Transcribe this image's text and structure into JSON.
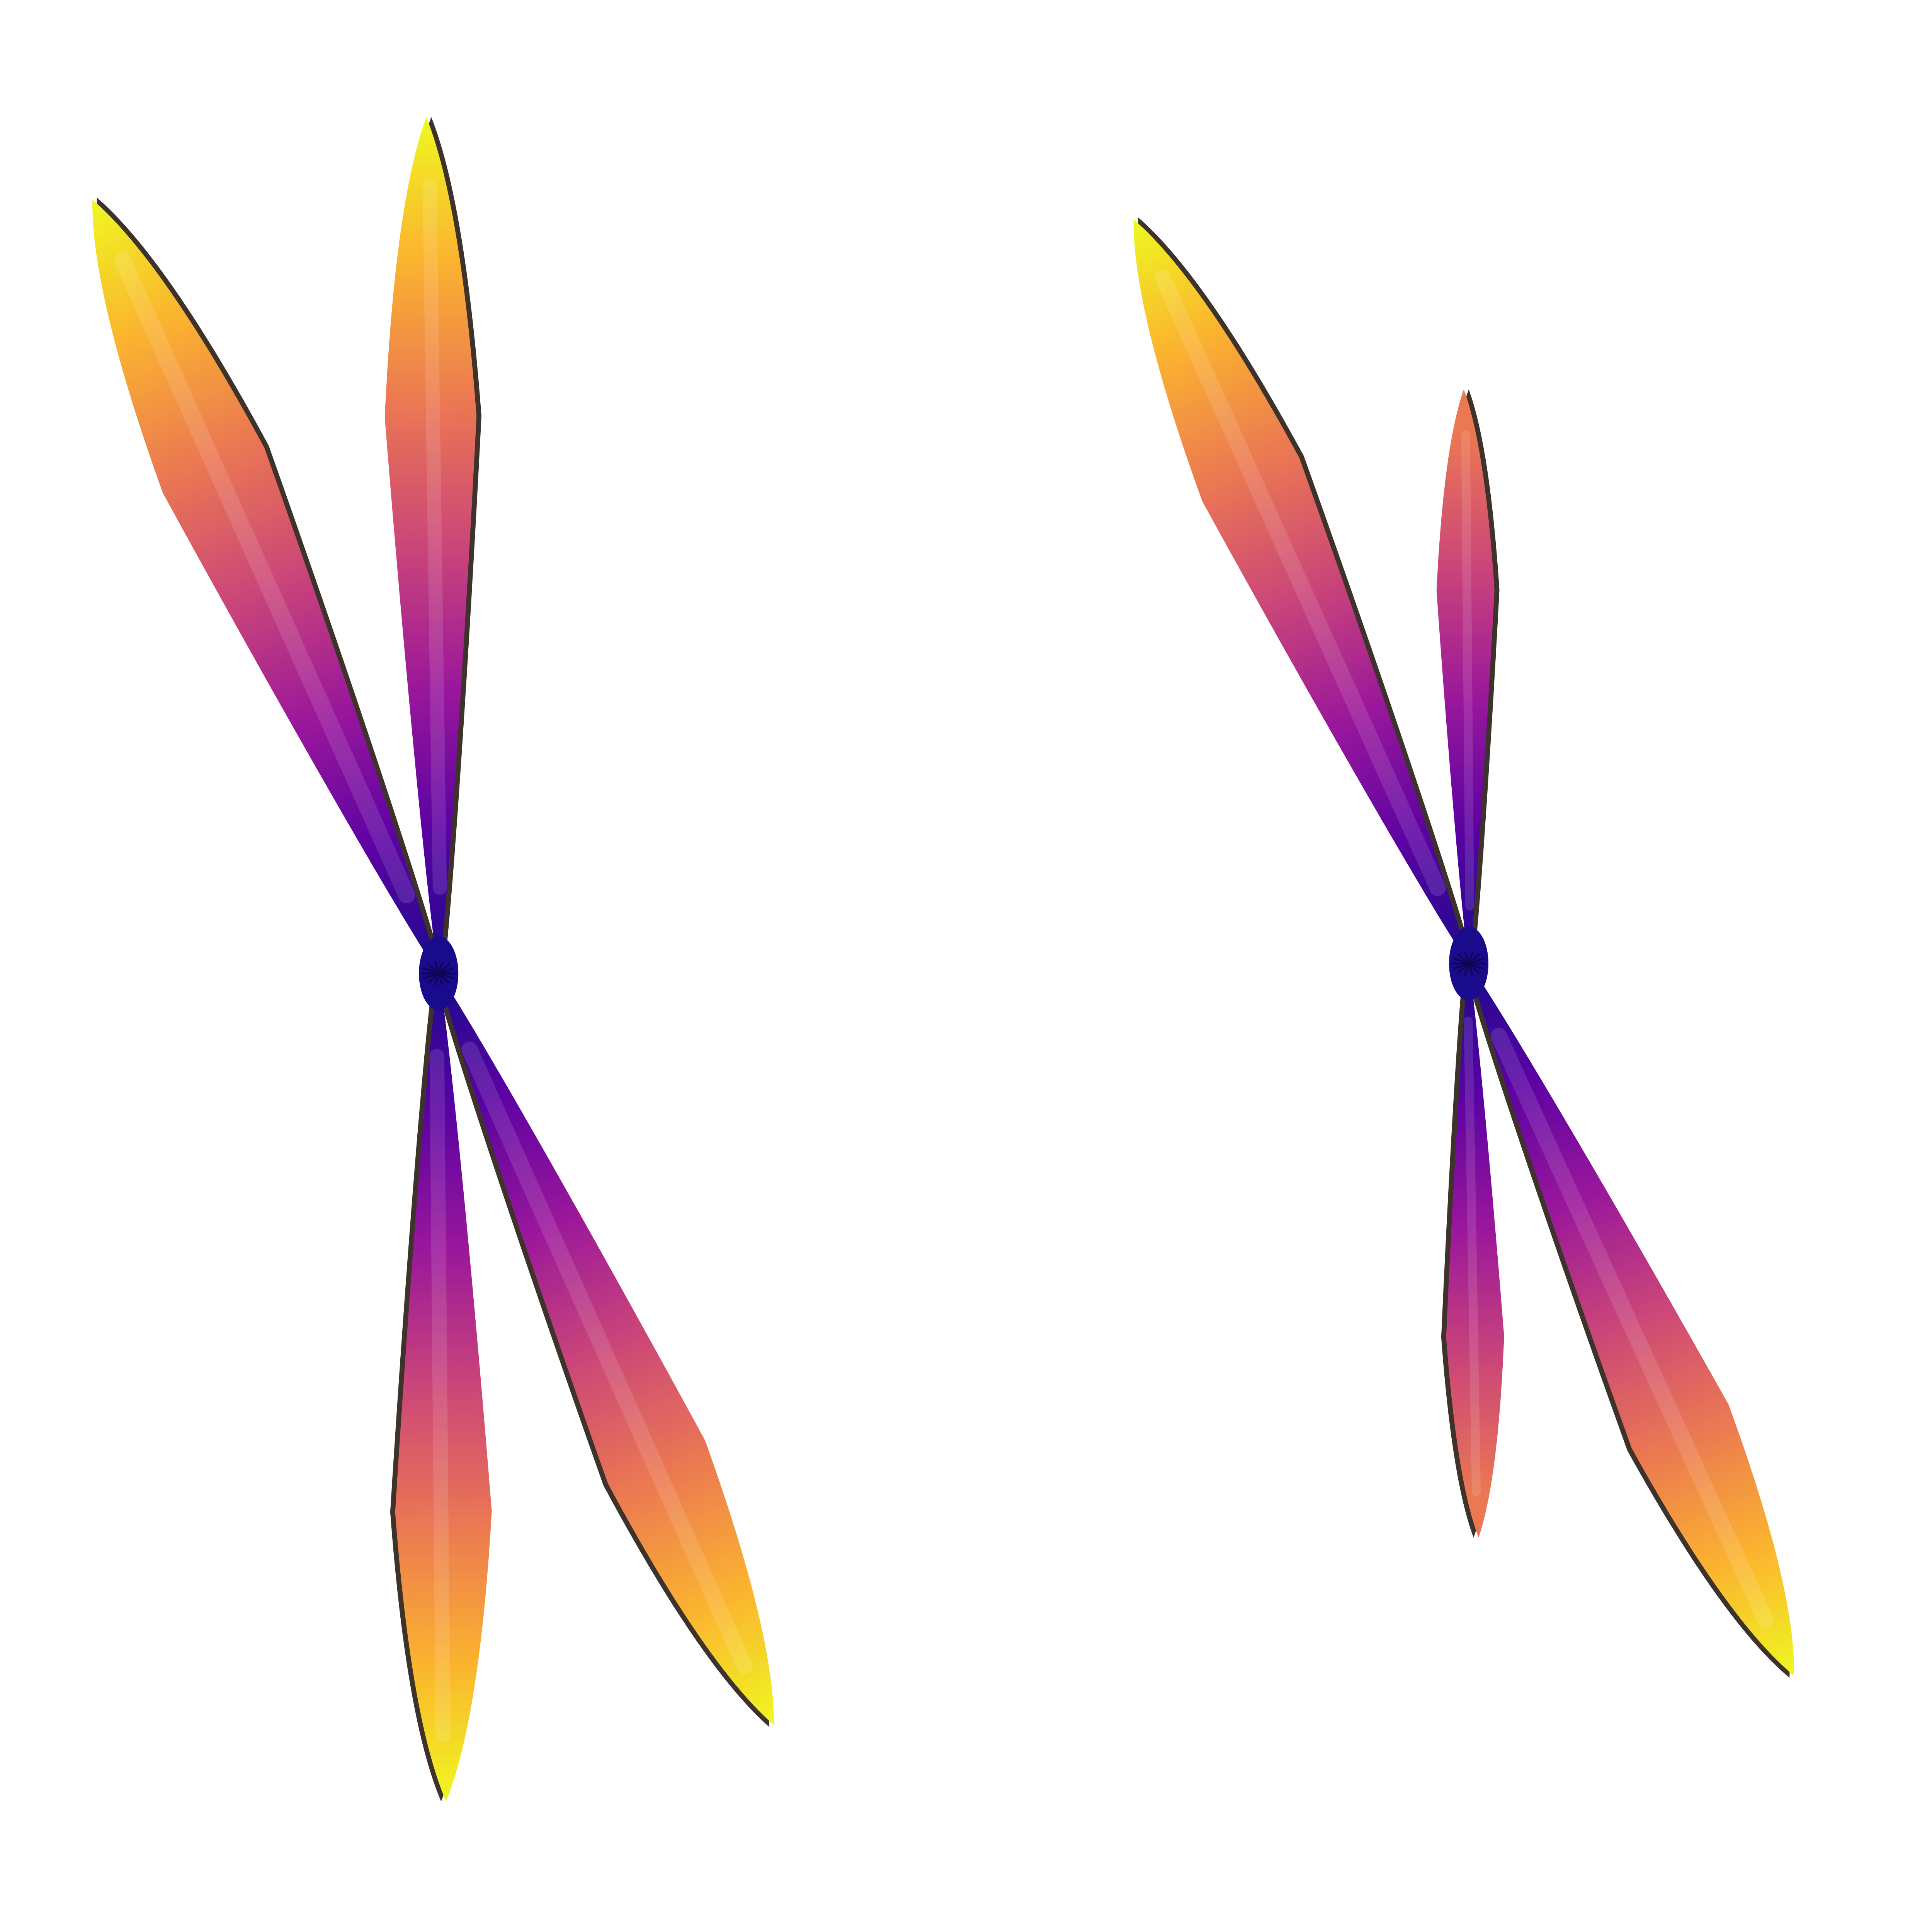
{
  "figure": {
    "background": "#ffffff",
    "colormap": {
      "name": "plasma",
      "stops": [
        "#1a0a8c",
        "#5b02a3",
        "#9a179b",
        "#cb4678",
        "#eb7852",
        "#fbb32f",
        "#eff821"
      ]
    },
    "edge_shadow": "#1c0f05",
    "glyphs": [
      {
        "name": "left-glyph",
        "lobes": [
          {
            "name": "upper-left-lobe",
            "tip_color_level": 1.0
          },
          {
            "name": "upper-right-lobe",
            "tip_color_level": 1.0
          },
          {
            "name": "lower-left-lobe",
            "tip_color_level": 1.0
          },
          {
            "name": "lower-right-lobe",
            "tip_color_level": 1.0
          }
        ]
      },
      {
        "name": "right-glyph",
        "lobes": [
          {
            "name": "upper-left-lobe",
            "tip_color_level": 1.0
          },
          {
            "name": "upper-right-lobe",
            "tip_color_level": 0.72
          },
          {
            "name": "lower-left-lobe",
            "tip_color_level": 0.72
          },
          {
            "name": "lower-right-lobe",
            "tip_color_level": 1.0
          }
        ]
      }
    ]
  }
}
